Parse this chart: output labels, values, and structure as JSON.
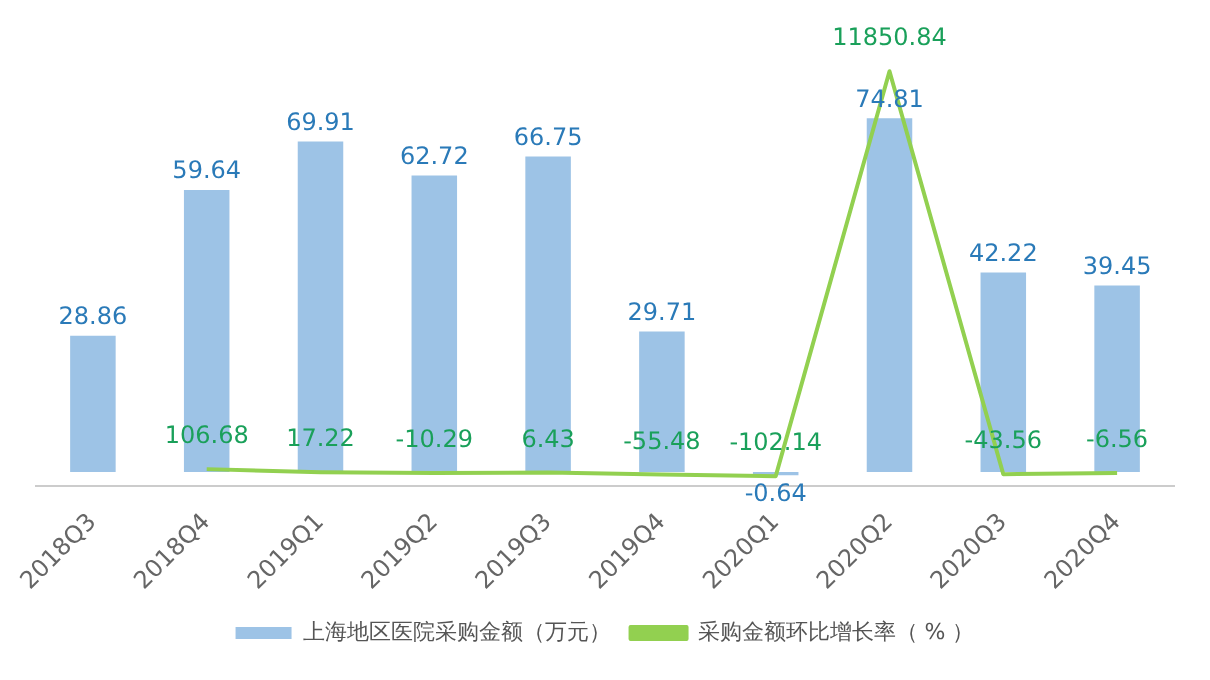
{
  "chart_data": {
    "type": "bar",
    "categories": [
      "2018Q3",
      "2018Q4",
      "2019Q1",
      "2019Q2",
      "2019Q3",
      "2019Q4",
      "2020Q1",
      "2020Q2",
      "2020Q3",
      "2020Q4"
    ],
    "series": [
      {
        "name": "上海地区医院采购金额（万元）",
        "color": "#9dc3e6",
        "values": [
          28.86,
          59.64,
          69.91,
          62.72,
          66.75,
          29.71,
          -0.64,
          74.81,
          42.22,
          39.45
        ]
      },
      {
        "name": "采购金额环比增长率（ % ）",
        "type": "line",
        "axis": "y2",
        "color": "#92d050",
        "values": [
          null,
          106.68,
          17.22,
          -10.29,
          6.43,
          -55.48,
          -102.14,
          11850.84,
          -43.56,
          -6.56
        ]
      }
    ],
    "data_labels": true,
    "legend": "bottom",
    "grid": false,
    "marker": "none"
  }
}
